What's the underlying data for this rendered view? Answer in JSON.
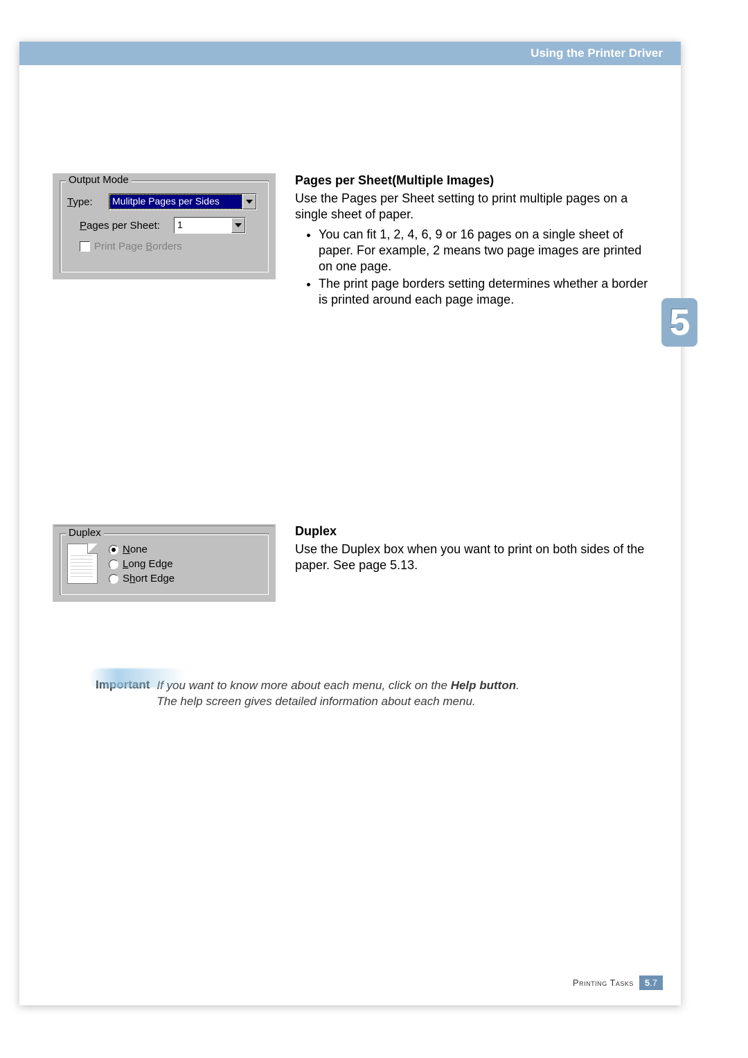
{
  "header": {
    "title": "Using the Printer Driver"
  },
  "tab_badge": "5",
  "output_mode": {
    "legend": "Output Mode",
    "type_label_html": "<u>T</u>ype:",
    "type_value": "Mulitple Pages per Sides",
    "pps_label_html": "<u>P</u>ages per Sheet:",
    "pps_value": "1",
    "ppb_label_html": "Print Page <u>B</u>orders",
    "ppb_disabled": true
  },
  "pps_section": {
    "title": "Pages per Sheet(Multiple Images)",
    "intro": "Use the Pages per Sheet setting to print multiple pages on a single sheet of paper.",
    "bullets": [
      "You can fit 1, 2, 4, 6, 9 or 16 pages on a single sheet of paper. For example, 2 means two page images are printed on one page.",
      "The print page borders setting determines whether a border is printed around each page image."
    ]
  },
  "duplex_box": {
    "legend": "Duplex",
    "options": [
      {
        "label_html": "<u>N</u>one",
        "checked": true
      },
      {
        "label_html": "<u>L</u>ong Edge",
        "checked": false
      },
      {
        "label_html": "S<u>h</u>ort Edge",
        "checked": false
      }
    ]
  },
  "duplex_section": {
    "title": "Duplex",
    "text": "Use the Duplex box when you want to print on both sides of the paper. See page 5.13."
  },
  "important": {
    "label": "Important",
    "line1_html": "If you want to know more about each menu, click on the <b>Help button</b>.",
    "line2": "The help screen gives detailed information about each menu."
  },
  "footer": {
    "label": "Printing Tasks",
    "page_major": "5",
    "page_minor": ".7"
  },
  "colors": {
    "header_band": "#97b8d4",
    "win_bg": "#c0c0c0",
    "footer_box": "#6c91b2"
  }
}
